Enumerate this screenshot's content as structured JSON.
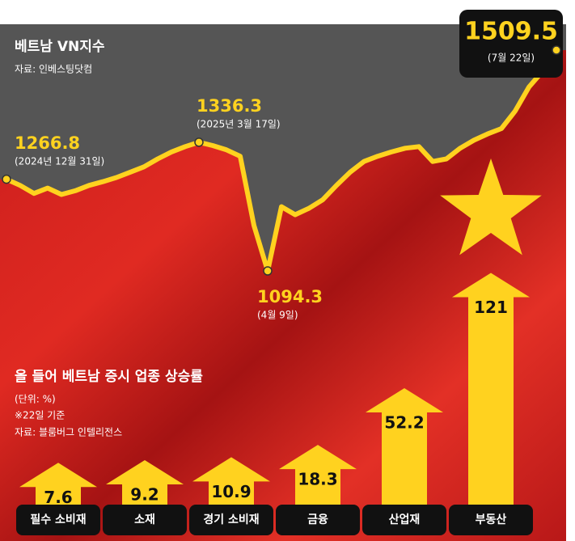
{
  "chart_data": [
    {
      "type": "line",
      "title": "베트남 VN지수",
      "source": "자료: 인베스팅닷컴",
      "color": "#ffd21f",
      "values": [
        1266.8,
        1255,
        1240,
        1250,
        1238,
        1245,
        1255,
        1262,
        1270,
        1280,
        1290,
        1305,
        1318,
        1328,
        1336.3,
        1330,
        1322,
        1310,
        1180,
        1094.3,
        1215,
        1200,
        1212,
        1228,
        1255,
        1280,
        1300,
        1310,
        1318,
        1325,
        1328,
        1300,
        1305,
        1325,
        1340,
        1352,
        1362,
        1395,
        1440,
        1470,
        1509.5
      ],
      "annotations": [
        {
          "value": 1266.8,
          "date": "(2024년 12월 31일)"
        },
        {
          "value": 1336.3,
          "date": "(2025년 3월 17일)"
        },
        {
          "value": 1094.3,
          "date": "(4월 9일)"
        },
        {
          "value": 1509.5,
          "date": "(7월 22일)"
        }
      ]
    },
    {
      "type": "bar",
      "title": "올 들어 베트남 증시 업종 상승률",
      "subtitle": "(단위: %)",
      "note": "※22일 기준",
      "source": "자료: 블룸버그 인텔리전스",
      "color": "#ffd21f",
      "categories": [
        "필수 소비재",
        "소재",
        "경기 소비재",
        "금융",
        "산업재",
        "부동산"
      ],
      "values": [
        7.6,
        9.2,
        10.9,
        18.3,
        52.2,
        121
      ]
    }
  ]
}
